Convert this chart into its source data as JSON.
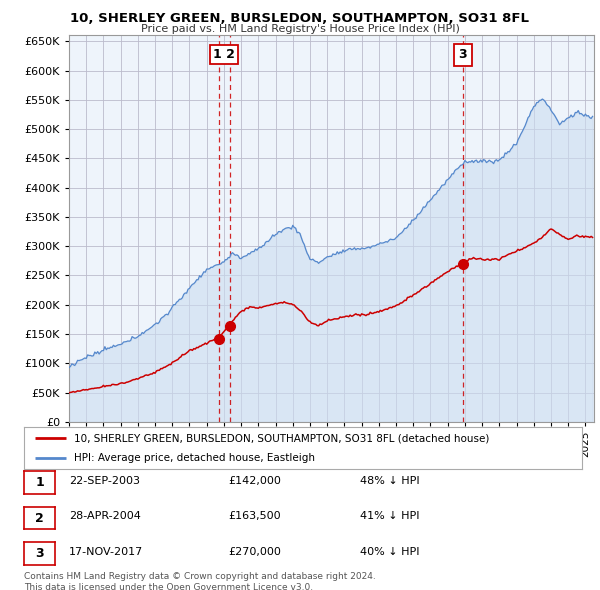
{
  "title": "10, SHERLEY GREEN, BURSLEDON, SOUTHAMPTON, SO31 8FL",
  "subtitle": "Price paid vs. HM Land Registry's House Price Index (HPI)",
  "ylim": [
    0,
    660000
  ],
  "yticks": [
    0,
    50000,
    100000,
    150000,
    200000,
    250000,
    300000,
    350000,
    400000,
    450000,
    500000,
    550000,
    600000,
    650000
  ],
  "xlim_start": 1995.0,
  "xlim_end": 2025.5,
  "bg_color": "#ffffff",
  "plot_bg_color": "#eef4fb",
  "grid_color": "#bbbbcc",
  "hpi_color": "#5588cc",
  "hpi_fill_color": "#ccddf0",
  "sale_color": "#cc0000",
  "vline_color": "#cc0000",
  "sale_dates": [
    2003.72,
    2004.33,
    2017.88
  ],
  "sale_prices": [
    142000,
    163500,
    270000
  ],
  "vline_dates": [
    2003.72,
    2004.33,
    2017.88
  ],
  "label_12_date": 2004.0,
  "label_3_date": 2017.88,
  "table_rows": [
    {
      "num": "1",
      "date": "22-SEP-2003",
      "price": "£142,000",
      "pct": "48% ↓ HPI"
    },
    {
      "num": "2",
      "date": "28-APR-2004",
      "price": "£163,500",
      "pct": "41% ↓ HPI"
    },
    {
      "num": "3",
      "date": "17-NOV-2017",
      "price": "£270,000",
      "pct": "40% ↓ HPI"
    }
  ],
  "legend_entries": [
    "10, SHERLEY GREEN, BURSLEDON, SOUTHAMPTON, SO31 8FL (detached house)",
    "HPI: Average price, detached house, Eastleigh"
  ],
  "footnote": "Contains HM Land Registry data © Crown copyright and database right 2024.\nThis data is licensed under the Open Government Licence v3.0."
}
